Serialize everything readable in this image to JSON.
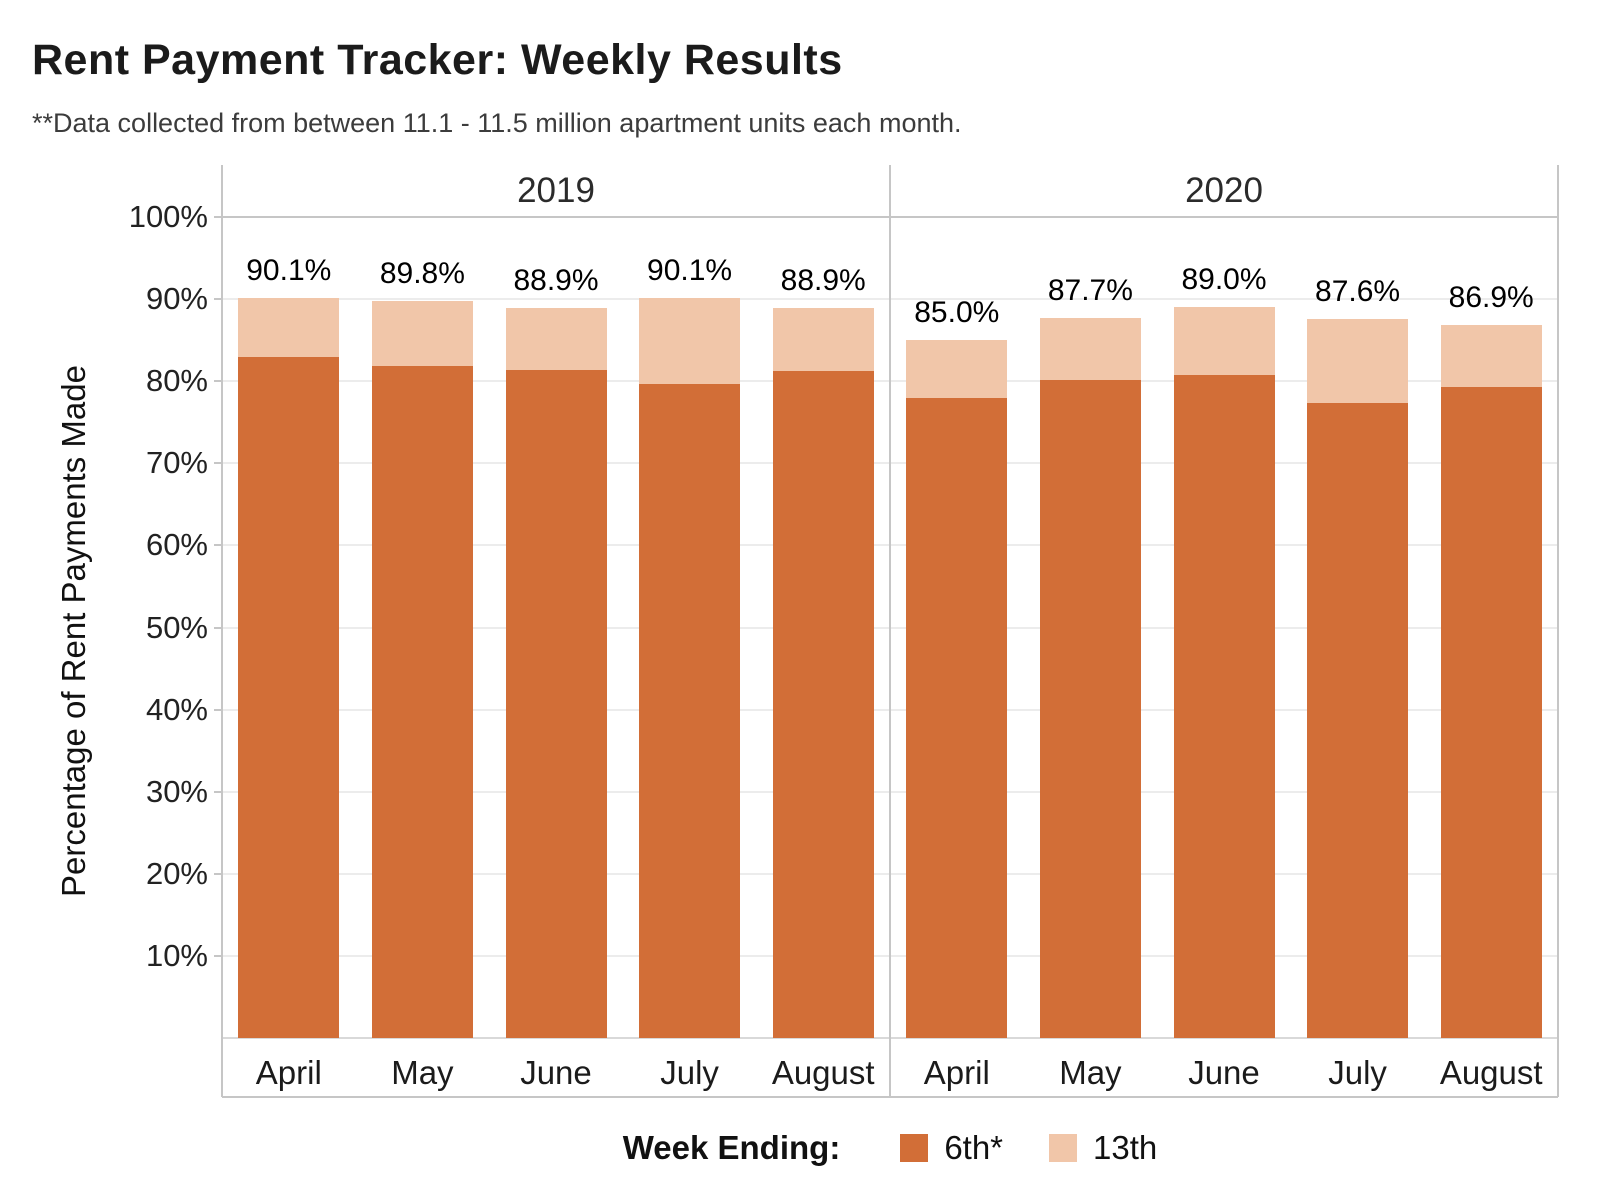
{
  "header": {
    "title": "Rent Payment Tracker: Weekly Results",
    "subtitle": "**Data collected from between 11.1 - 11.5 million apartment units each month."
  },
  "chart_data": {
    "type": "bar",
    "stacked": true,
    "title": "Rent Payment Tracker: Weekly Results",
    "ylabel": "Percentage of Rent Payments Made",
    "ylim": [
      0,
      100
    ],
    "yticks": [
      {
        "label": "10%",
        "value": 10
      },
      {
        "label": "20%",
        "value": 20
      },
      {
        "label": "30%",
        "value": 30
      },
      {
        "label": "40%",
        "value": 40
      },
      {
        "label": "50%",
        "value": 50
      },
      {
        "label": "60%",
        "value": 60
      },
      {
        "label": "70%",
        "value": 70
      },
      {
        "label": "80%",
        "value": 80
      },
      {
        "label": "90%",
        "value": 90
      },
      {
        "label": "100%",
        "value": 100
      }
    ],
    "grid": true,
    "panels": [
      {
        "year": "2019",
        "categories": [
          "April",
          "May",
          "June",
          "July",
          "August"
        ],
        "series": [
          {
            "name": "6th*",
            "values": [
              83.0,
              81.8,
              81.4,
              79.6,
              81.2
            ]
          },
          {
            "name": "13th",
            "values": [
              7.1,
              8.0,
              7.5,
              10.5,
              7.7
            ]
          }
        ],
        "totals": [
          90.1,
          89.8,
          88.9,
          90.1,
          88.9
        ],
        "total_labels": [
          "90.1%",
          "89.8%",
          "88.9%",
          "90.1%",
          "88.9%"
        ]
      },
      {
        "year": "2020",
        "categories": [
          "April",
          "May",
          "June",
          "July",
          "August"
        ],
        "series": [
          {
            "name": "6th*",
            "values": [
              78.0,
              80.2,
              80.8,
              77.4,
              79.3
            ]
          },
          {
            "name": "13th",
            "values": [
              7.0,
              7.5,
              8.2,
              10.2,
              7.6
            ]
          }
        ],
        "totals": [
          85.0,
          87.7,
          89.0,
          87.6,
          86.9
        ],
        "total_labels": [
          "85.0%",
          "87.7%",
          "89.0%",
          "87.6%",
          "86.9%"
        ]
      }
    ],
    "legend": {
      "position": "bottom",
      "title": "Week Ending:",
      "items": [
        {
          "label": "6th*",
          "color": "#d26e37"
        },
        {
          "label": "13th",
          "color": "#f1c6a9"
        }
      ]
    },
    "colors": {
      "series_6th": "#d26e37",
      "series_13th": "#f1c6a9",
      "gridline": "#ececec",
      "border": "#c6c6c6"
    }
  }
}
